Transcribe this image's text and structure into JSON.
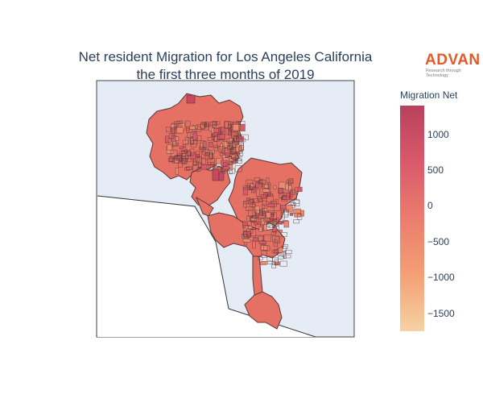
{
  "title_line1": "Net resident Migration for Los Angeles California",
  "title_line2": "the first three months of 2019",
  "logo": {
    "name": "ADVAN",
    "tagline": "Research through Technology"
  },
  "colorbar": {
    "title": "Migration Net",
    "range": [
      -1750,
      1400
    ],
    "ticks": [
      {
        "value": 1000,
        "label": "1000"
      },
      {
        "value": 500,
        "label": "500"
      },
      {
        "value": 0,
        "label": "0"
      },
      {
        "value": -500,
        "label": "−500"
      },
      {
        "value": -1000,
        "label": "−1000"
      },
      {
        "value": -1500,
        "label": "−1500"
      }
    ],
    "colors": [
      "#b9415e",
      "#d9596a",
      "#ec7c6f",
      "#f3a074",
      "#f6d2a4"
    ]
  },
  "map": {
    "background": "#e5ecf6",
    "region_color": "#e57064",
    "border_color": "#5a3838"
  }
}
